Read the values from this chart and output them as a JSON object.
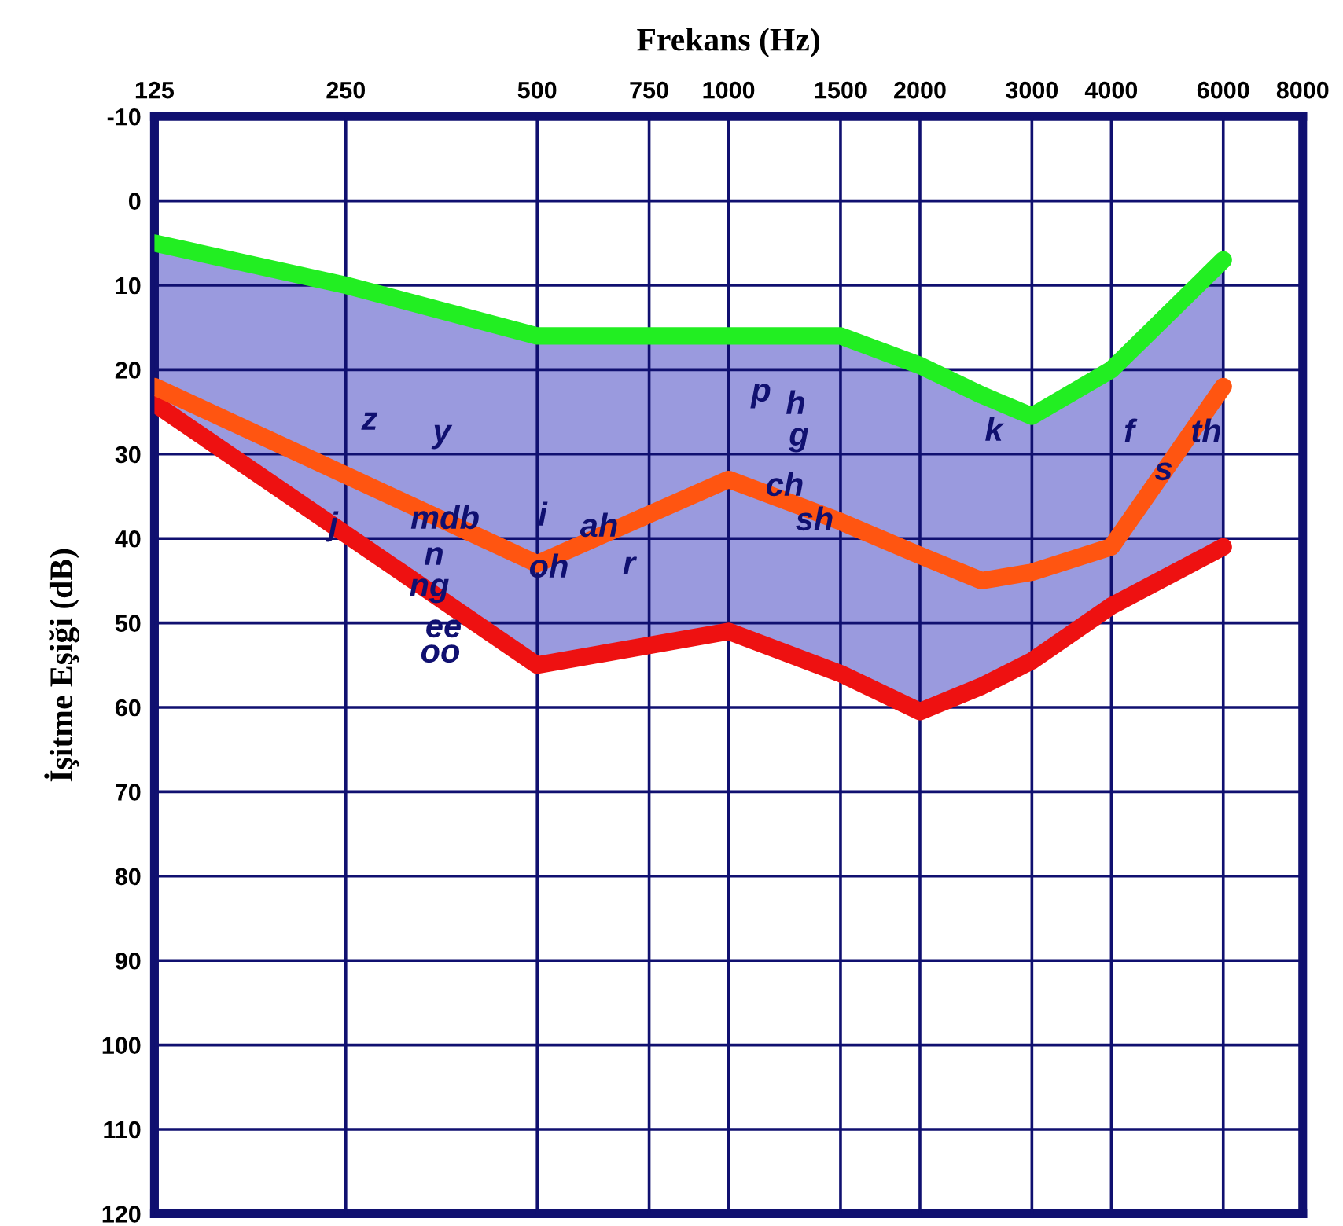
{
  "chart_data": {
    "type": "line",
    "xlabel": "Frekans (Hz)",
    "ylabel": "İşitme Eşiği (dB)",
    "log": "x",
    "x": [
      125,
      250,
      500,
      1000,
      1500,
      2000,
      2500,
      3000,
      4000,
      6000
    ],
    "series": [
      {
        "color": "#22ee22",
        "values": [
          5,
          10,
          16,
          16,
          16,
          19.5,
          23,
          25.5,
          20,
          7
        ]
      },
      {
        "color": "#ee1111",
        "values": [
          24,
          39.5,
          55,
          51,
          56,
          60.5,
          57.5,
          54.5,
          48,
          41
        ]
      },
      {
        "color": "#ff5511",
        "values": [
          22,
          32.5,
          43,
          33,
          38,
          42,
          45,
          44,
          41,
          22
        ],
        "lower": [
          5,
          10,
          16,
          16,
          16,
          19.5,
          23,
          25.5,
          20,
          7
        ],
        "upper": [
          24,
          39.5,
          55,
          51,
          56,
          60.5,
          57.5,
          54.5,
          48,
          41
        ]
      }
    ],
    "xlim": [
      125,
      8000
    ],
    "xticks": [
      125,
      250,
      500,
      750,
      1000,
      1500,
      2000,
      3000,
      4000,
      6000,
      8000
    ],
    "ylim": [
      120,
      -10
    ],
    "yticks": [
      -10,
      0,
      10,
      20,
      30,
      40,
      50,
      60,
      70,
      80,
      90,
      100,
      110,
      120
    ],
    "grid": true,
    "marker": "none",
    "line_style": "solid",
    "annotations": [
      "z",
      "y",
      "j",
      "mdb",
      "n",
      "ng",
      "ee",
      "oo",
      "i",
      "oh",
      "ah",
      "r",
      "p",
      "h",
      "g",
      "ch",
      "sh",
      "k",
      "f",
      "s",
      "th"
    ]
  }
}
